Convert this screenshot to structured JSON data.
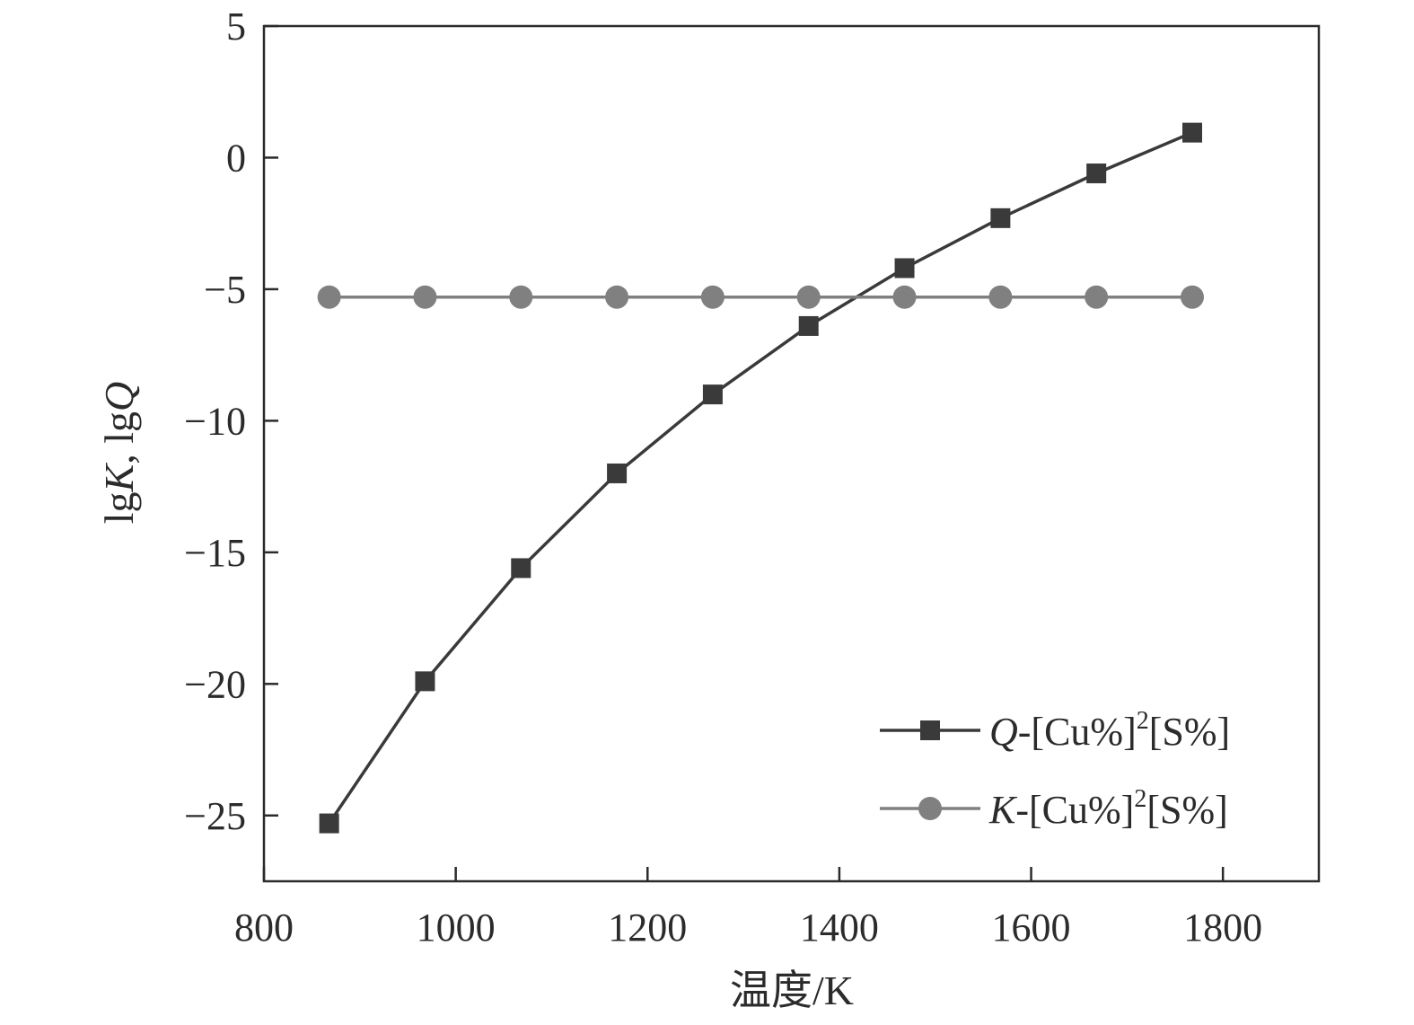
{
  "chart_data": {
    "type": "line",
    "xlabel": "温度/K",
    "ylabel": {
      "part1": "lg",
      "italic1": "K",
      "part2": ", lg",
      "italic2": "Q"
    },
    "xlim": [
      800,
      1900
    ],
    "ylim": [
      -27.5,
      5
    ],
    "xticks": [
      800,
      1000,
      1200,
      1400,
      1600,
      1800
    ],
    "yticks": [
      5,
      0,
      -5,
      -10,
      -15,
      -20,
      -25
    ],
    "ytick_labels": [
      "5",
      "0",
      "−5",
      "−10",
      "−15",
      "−20",
      "−25"
    ],
    "grid": false,
    "legend_position": "bottom-right",
    "x": [
      868,
      968,
      1068,
      1168,
      1268,
      1368,
      1468,
      1568,
      1668,
      1768
    ],
    "series": [
      {
        "name": "Q-[Cu%]2[S%]",
        "name_italic": "Q",
        "name_rest": "-[Cu%]",
        "name_sup": "2",
        "name_tail": "[S%]",
        "marker": "square",
        "color": "#3a3a3a",
        "values": [
          -25.3,
          -19.9,
          -15.6,
          -12.0,
          -9.0,
          -6.4,
          -4.2,
          -2.3,
          -0.6,
          0.95
        ]
      },
      {
        "name": "K-[Cu%]2[S%]",
        "name_italic": "K",
        "name_rest": "-[Cu%]",
        "name_sup": "2",
        "name_tail": "[S%]",
        "marker": "circle",
        "color": "#808080",
        "values": [
          -5.3,
          -5.3,
          -5.3,
          -5.3,
          -5.3,
          -5.3,
          -5.3,
          -5.3,
          -5.3,
          -5.3
        ]
      }
    ]
  }
}
